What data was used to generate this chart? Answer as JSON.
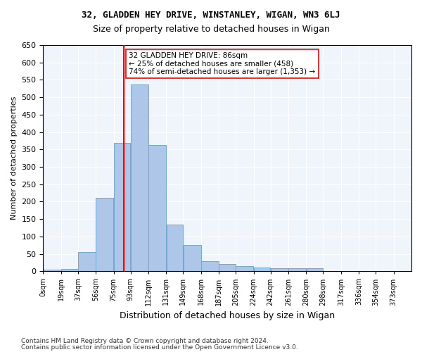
{
  "title_line1": "32, GLADDEN HEY DRIVE, WINSTANLEY, WIGAN, WN3 6LJ",
  "title_line2": "Size of property relative to detached houses in Wigan",
  "xlabel": "Distribution of detached houses by size in Wigan",
  "ylabel": "Number of detached properties",
  "bar_color": "#aec6e8",
  "bar_edgecolor": "#6fa8d0",
  "vline_x": 86,
  "vline_color": "red",
  "annotation_text": "32 GLADDEN HEY DRIVE: 86sqm\n← 25% of detached houses are smaller (458)\n74% of semi-detached houses are larger (1,353) →",
  "annotation_box_color": "white",
  "annotation_box_edgecolor": "red",
  "categories": [
    "0sqm",
    "19sqm",
    "37sqm",
    "56sqm",
    "75sqm",
    "93sqm",
    "112sqm",
    "131sqm",
    "149sqm",
    "168sqm",
    "187sqm",
    "205sqm",
    "224sqm",
    "242sqm",
    "261sqm",
    "280sqm",
    "298sqm",
    "317sqm",
    "336sqm",
    "354sqm",
    "373sqm"
  ],
  "bin_edges": [
    0,
    19,
    37,
    56,
    75,
    93,
    112,
    131,
    149,
    168,
    187,
    205,
    224,
    242,
    261,
    280,
    298,
    317,
    336,
    354,
    373,
    392
  ],
  "values": [
    5,
    7,
    55,
    210,
    369,
    536,
    363,
    135,
    75,
    28,
    20,
    15,
    10,
    9,
    9,
    8,
    0,
    0,
    0,
    0,
    0
  ],
  "ylim": [
    0,
    650
  ],
  "yticks": [
    0,
    50,
    100,
    150,
    200,
    250,
    300,
    350,
    400,
    450,
    500,
    550,
    600,
    650
  ],
  "footer1": "Contains HM Land Registry data © Crown copyright and database right 2024.",
  "footer2": "Contains public sector information licensed under the Open Government Licence v3.0.",
  "bg_color": "#f0f4fb"
}
